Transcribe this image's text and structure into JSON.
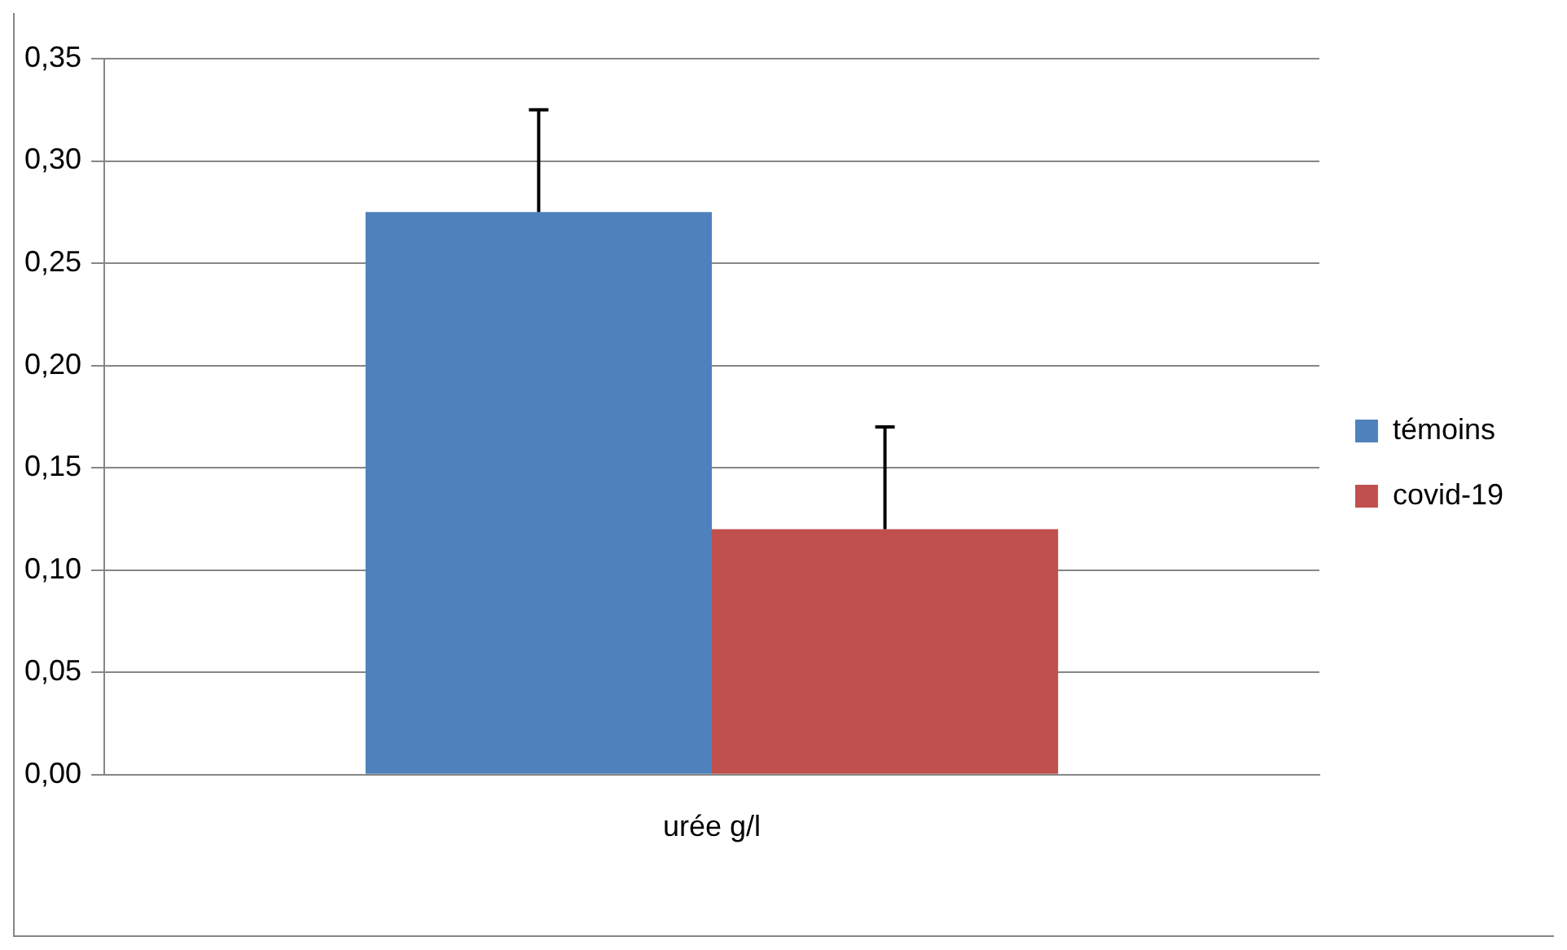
{
  "chart_data": {
    "type": "bar",
    "categories": [
      "urée g/l"
    ],
    "series": [
      {
        "name": "témoins",
        "color": "#4f81bd",
        "values": [
          0.275
        ],
        "errors": [
          [
            0.275,
            0.325
          ]
        ]
      },
      {
        "name": "covid-19",
        "color": "#c0504d",
        "values": [
          0.12
        ],
        "errors": [
          [
            0.12,
            0.17
          ]
        ]
      }
    ],
    "ylim": [
      0,
      0.35
    ],
    "yticks": [
      {
        "value": 0,
        "label": "0,00"
      },
      {
        "value": 0.05,
        "label": "0,05"
      },
      {
        "value": 0.1,
        "label": "0,10"
      },
      {
        "value": 0.15,
        "label": "0,15"
      },
      {
        "value": 0.2,
        "label": "0,20"
      },
      {
        "value": 0.25,
        "label": "0,25"
      },
      {
        "value": 0.3,
        "label": "0,30"
      },
      {
        "value": 0.35,
        "label": "0,35"
      }
    ],
    "grid": "y",
    "legend": "right"
  }
}
